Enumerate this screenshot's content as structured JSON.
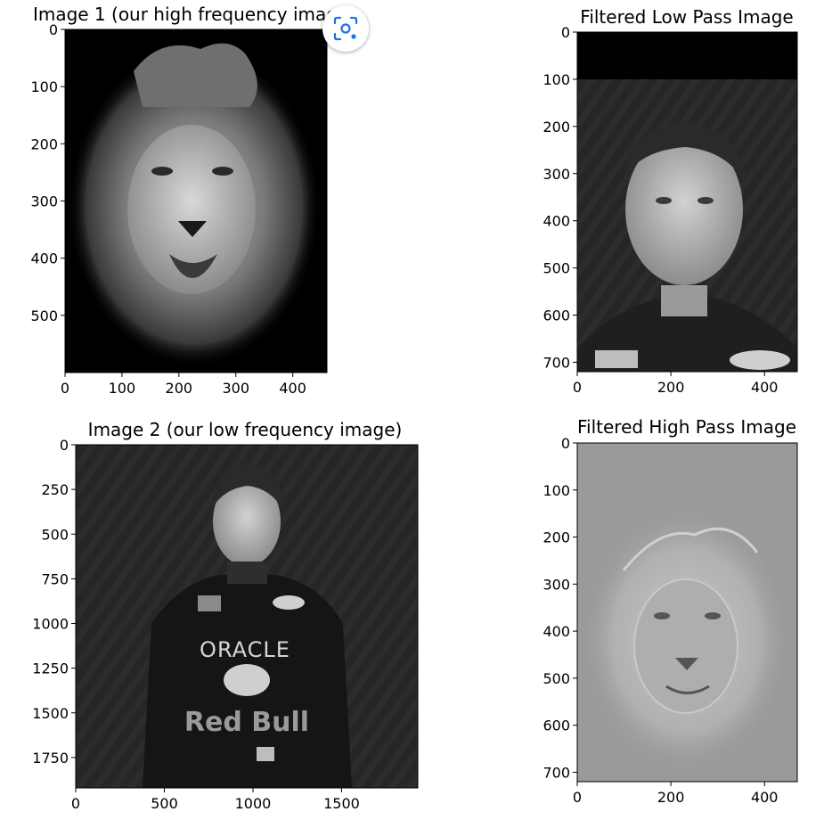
{
  "chart_data": [
    {
      "type": "image",
      "title": "Image 1 (our high frequency image)",
      "xlim": [
        0,
        460
      ],
      "ylim": [
        600,
        0
      ],
      "xticks": [
        0,
        100,
        200,
        300,
        400
      ],
      "yticks": [
        0,
        100,
        200,
        300,
        400,
        500
      ],
      "content": "lion-grayscale"
    },
    {
      "type": "image",
      "title": "Filtered Low Pass Image",
      "xlim": [
        0,
        470
      ],
      "ylim": [
        720,
        0
      ],
      "xticks": [
        0,
        200,
        400
      ],
      "yticks": [
        0,
        100,
        200,
        300,
        400,
        500,
        600,
        700
      ],
      "content": "driver-lowpass"
    },
    {
      "type": "image",
      "title": "Image 2 (our low frequency image)",
      "xlim": [
        0,
        1930
      ],
      "ylim": [
        1920,
        0
      ],
      "xticks": [
        0,
        500,
        1000,
        1500
      ],
      "yticks": [
        0,
        250,
        500,
        750,
        1000,
        1250,
        1500,
        1750
      ],
      "content": "driver-grayscale"
    },
    {
      "type": "image",
      "title": "Filtered High Pass Image",
      "xlim": [
        0,
        470
      ],
      "ylim": [
        720,
        0
      ],
      "xticks": [
        0,
        200,
        400
      ],
      "yticks": [
        0,
        100,
        200,
        300,
        400,
        500,
        600,
        700
      ],
      "content": "lion-highpass"
    }
  ],
  "icons": {
    "overlay": "lens-scan-icon"
  }
}
